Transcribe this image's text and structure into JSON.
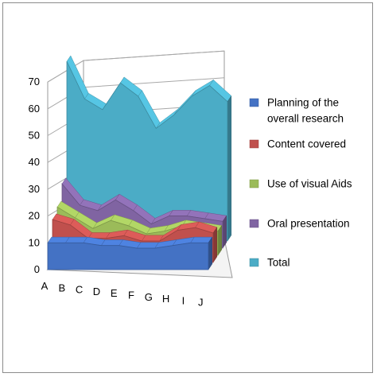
{
  "chart_data": {
    "type": "area",
    "style": "3d-stacked-depth",
    "categories": [
      "A",
      "B",
      "C",
      "D",
      "E",
      "F",
      "G",
      "H",
      "I",
      "J"
    ],
    "ylim": [
      0,
      70
    ],
    "yticks": [
      0,
      10,
      20,
      30,
      40,
      50,
      60,
      70
    ],
    "grid": true,
    "legend_position": "right",
    "series": [
      {
        "name": "Planning of the overall research",
        "color": "#4472C4",
        "values": [
          10,
          10,
          10,
          9,
          9,
          8,
          8,
          9,
          10,
          10
        ]
      },
      {
        "name": "Content covered",
        "color": "#C0504D",
        "values": [
          16,
          14,
          9,
          9,
          10,
          8,
          8,
          12,
          13,
          11
        ]
      },
      {
        "name": "Use of visual Aids",
        "color": "#9BBB59",
        "values": [
          18,
          14,
          10,
          13,
          11,
          8,
          9,
          11,
          10,
          9
        ]
      },
      {
        "name": "Oral presentation",
        "color": "#8064A2",
        "values": [
          24,
          16,
          14,
          18,
          14,
          9,
          12,
          12,
          11,
          10
        ]
      },
      {
        "name": "Total",
        "color": "#4BACC6",
        "values": [
          67,
          53,
          49,
          59,
          54,
          42,
          47,
          54,
          58,
          52
        ]
      }
    ]
  }
}
